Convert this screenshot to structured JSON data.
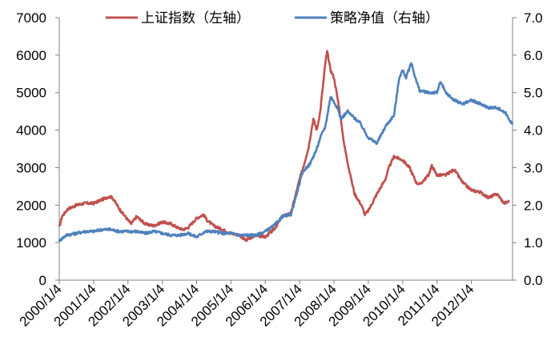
{
  "chart_data": {
    "type": "line",
    "title": "",
    "xlabel": "",
    "ylabel_left": "",
    "ylabel_right": "",
    "x_tick_labels": [
      "2000/1/4",
      "2001/1/4",
      "2002/1/4",
      "2003/1/4",
      "2004/1/4",
      "2005/1/4",
      "2006/1/4",
      "2007/1/4",
      "2008/1/4",
      "2009/1/4",
      "2010/1/4",
      "2011/1/4",
      "2012/1/4"
    ],
    "y_left": {
      "ylim": [
        0,
        7000
      ],
      "ticks": [
        0,
        1000,
        2000,
        3000,
        4000,
        5000,
        6000,
        7000
      ],
      "tick_labels": [
        "0",
        "1000",
        "2000",
        "3000",
        "4000",
        "5000",
        "6000",
        "7000"
      ]
    },
    "y_right": {
      "ylim": [
        0,
        7
      ],
      "ticks": [
        0,
        1,
        2,
        3,
        4,
        5,
        6,
        7
      ],
      "tick_labels": [
        "0.0",
        "1.0",
        "2.0",
        "3.0",
        "4.0",
        "5.0",
        "6.0",
        "7.0"
      ]
    },
    "x_range": [
      2000.0,
      2013.2
    ],
    "grid": false,
    "legend_position": "top-center",
    "series": [
      {
        "name": "上证指数（左轴）",
        "axis": "left",
        "color": "#C0504D",
        "x": [
          2000.0,
          2000.08,
          2000.25,
          2000.5,
          2000.75,
          2001.0,
          2001.25,
          2001.45,
          2001.55,
          2001.75,
          2002.0,
          2002.1,
          2002.25,
          2002.5,
          2002.75,
          2003.0,
          2003.25,
          2003.45,
          2003.6,
          2003.75,
          2004.0,
          2004.2,
          2004.3,
          2004.5,
          2004.75,
          2005.0,
          2005.25,
          2005.45,
          2005.5,
          2005.75,
          2006.0,
          2006.25,
          2006.5,
          2006.75,
          2007.0,
          2007.1,
          2007.25,
          2007.4,
          2007.5,
          2007.6,
          2007.75,
          2007.8,
          2007.9,
          2008.0,
          2008.15,
          2008.3,
          2008.45,
          2008.6,
          2008.8,
          2008.9,
          2009.0,
          2009.25,
          2009.5,
          2009.6,
          2009.75,
          2010.0,
          2010.2,
          2010.4,
          2010.5,
          2010.75,
          2010.85,
          2011.0,
          2011.25,
          2011.5,
          2011.75,
          2012.0,
          2012.25,
          2012.5,
          2012.75,
          2012.95,
          2013.1
        ],
        "y": [
          1400,
          1700,
          1900,
          2000,
          2050,
          2050,
          2150,
          2230,
          2200,
          1900,
          1600,
          1500,
          1700,
          1500,
          1450,
          1550,
          1500,
          1400,
          1350,
          1400,
          1650,
          1750,
          1600,
          1450,
          1350,
          1250,
          1200,
          1050,
          1100,
          1200,
          1150,
          1350,
          1700,
          1800,
          2700,
          3000,
          3500,
          4300,
          4000,
          4500,
          5800,
          6100,
          5600,
          5400,
          4600,
          3600,
          2900,
          2300,
          2000,
          1750,
          1850,
          2300,
          2700,
          3000,
          3300,
          3200,
          3000,
          2600,
          2550,
          2800,
          3050,
          2800,
          2800,
          2950,
          2600,
          2400,
          2350,
          2200,
          2300,
          2050,
          2100
        ]
      },
      {
        "name": "策略净值（右轴）",
        "axis": "right",
        "color": "#4F81BD",
        "x": [
          2000.0,
          2000.2,
          2000.5,
          2000.75,
          2001.0,
          2001.25,
          2001.5,
          2001.75,
          2002.0,
          2002.25,
          2002.5,
          2002.75,
          2003.0,
          2003.25,
          2003.5,
          2003.75,
          2004.0,
          2004.25,
          2004.5,
          2004.75,
          2005.0,
          2005.25,
          2005.5,
          2005.75,
          2006.0,
          2006.25,
          2006.5,
          2006.75,
          2007.0,
          2007.1,
          2007.3,
          2007.5,
          2007.6,
          2007.75,
          2007.9,
          2008.1,
          2008.2,
          2008.4,
          2008.5,
          2008.75,
          2009.0,
          2009.25,
          2009.5,
          2009.75,
          2009.9,
          2010.0,
          2010.1,
          2010.25,
          2010.4,
          2010.5,
          2010.75,
          2011.0,
          2011.1,
          2011.25,
          2011.5,
          2011.75,
          2012.0,
          2012.25,
          2012.5,
          2012.75,
          2013.0,
          2013.2
        ],
        "y": [
          1.05,
          1.2,
          1.25,
          1.3,
          1.3,
          1.35,
          1.35,
          1.3,
          1.3,
          1.3,
          1.25,
          1.3,
          1.25,
          1.2,
          1.2,
          1.25,
          1.15,
          1.3,
          1.3,
          1.25,
          1.25,
          1.2,
          1.2,
          1.2,
          1.3,
          1.45,
          1.7,
          1.75,
          2.6,
          2.9,
          3.1,
          3.5,
          3.8,
          4.1,
          4.9,
          4.6,
          4.3,
          4.5,
          4.4,
          4.2,
          3.8,
          3.65,
          4.1,
          4.4,
          5.4,
          5.6,
          5.4,
          5.8,
          5.3,
          5.05,
          5.0,
          5.0,
          5.3,
          5.0,
          4.8,
          4.7,
          4.8,
          4.7,
          4.6,
          4.6,
          4.45,
          4.15
        ]
      }
    ]
  }
}
